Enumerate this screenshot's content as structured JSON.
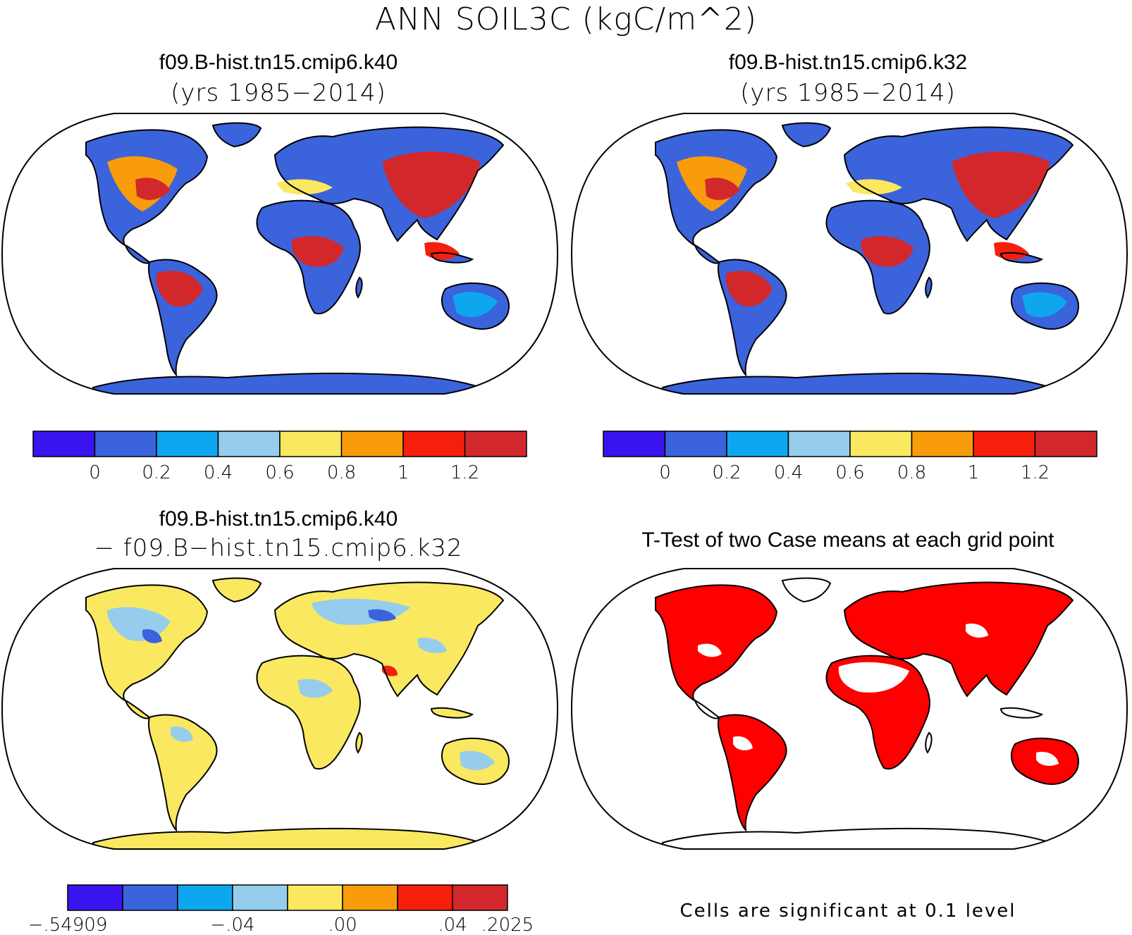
{
  "title": "ANN SOIL3C (kgC/m^2)",
  "palette": [
    "#3a14f0",
    "#3b63dc",
    "#0ea7ef",
    "#96cdec",
    "#f9e860",
    "#f99c0b",
    "#f51f0b",
    "#d2282c"
  ],
  "panels": [
    {
      "title": "f09.B-hist.tn15.cmip6.k40",
      "subtitle": "(yrs 1985−2014)",
      "colorbar_ticks": [
        "0",
        "0.2",
        "0.4",
        "0.6",
        "0.8",
        "1",
        "1.2"
      ]
    },
    {
      "title": "f09.B-hist.tn15.cmip6.k32",
      "subtitle": "(yrs 1985−2014)",
      "colorbar_ticks": [
        "0",
        "0.2",
        "0.4",
        "0.6",
        "0.8",
        "1",
        "1.2"
      ]
    },
    {
      "title": "f09.B-hist.tn15.cmip6.k40",
      "subtitle": "− f09.B−hist.tn15.cmip6.k32",
      "colorbar_ticks": [
        "−.54909",
        "−.04",
        ".00",
        ".04",
        ".2025"
      ]
    },
    {
      "title": "T-Test of two Case means at each grid point",
      "footnote": "Cells are significant at 0.1 level",
      "significance_color": "#ff0000"
    }
  ],
  "land_color_ocean": "#ffffff"
}
